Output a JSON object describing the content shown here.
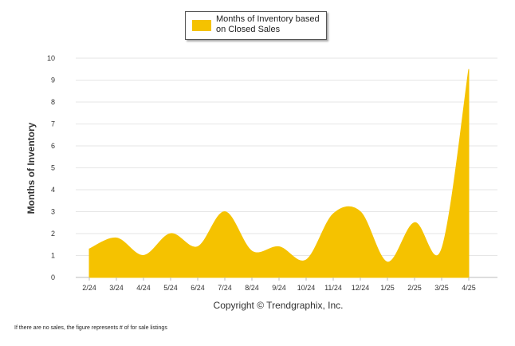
{
  "chart_data": {
    "type": "area",
    "categories": [
      "2/24",
      "3/24",
      "4/24",
      "5/24",
      "6/24",
      "7/24",
      "8/24",
      "9/24",
      "10/24",
      "11/24",
      "12/24",
      "1/25",
      "2/25",
      "3/25",
      "4/25"
    ],
    "series": [
      {
        "name": "Months of Inventory based on Closed Sales",
        "values": [
          1.3,
          1.8,
          1.0,
          2.0,
          1.4,
          3.0,
          1.2,
          1.4,
          0.8,
          2.9,
          3.0,
          0.7,
          2.5,
          1.3,
          9.5
        ]
      }
    ],
    "ylabel": "Months of Inventory",
    "ylim": [
      0,
      10
    ],
    "yticks": [
      0,
      1,
      2,
      3,
      4,
      5,
      6,
      7,
      8,
      9,
      10
    ],
    "grid": true,
    "legend_position": "top-center",
    "color": "#F5C200"
  },
  "copyright": "Copyright © Trendgraphix, Inc.",
  "footnote": "If there are no sales, the figure represents # of for sale listings"
}
